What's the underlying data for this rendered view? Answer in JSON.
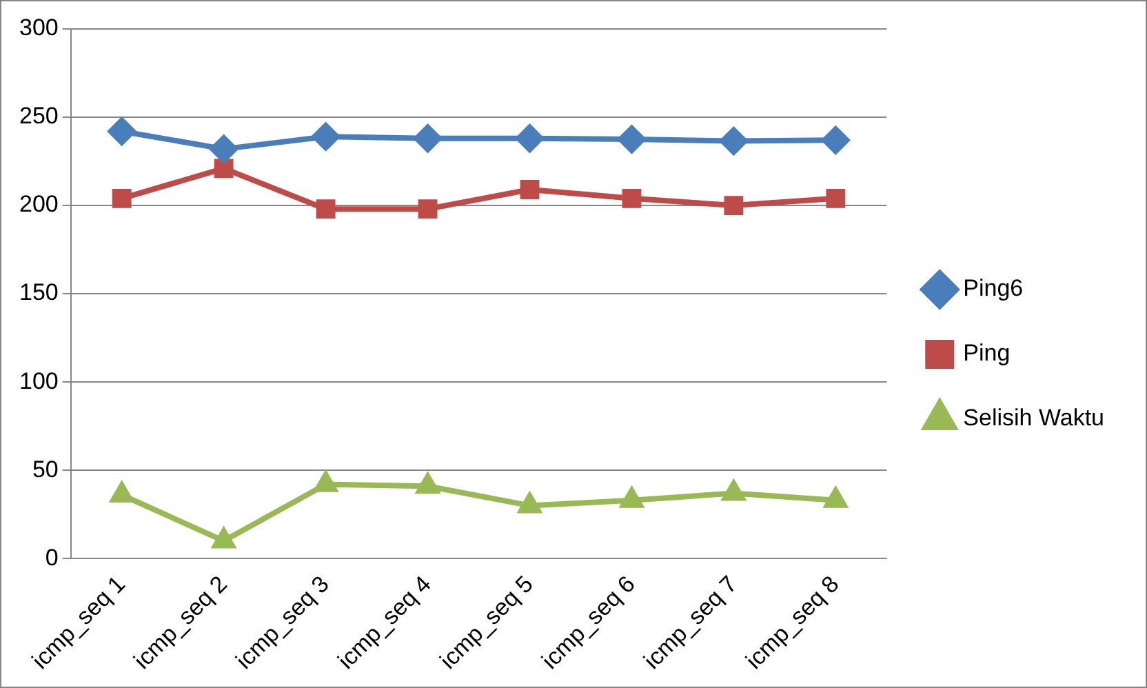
{
  "chart_data": {
    "type": "line",
    "categories": [
      "icmp_seq 1",
      "icmp_seq 2",
      "icmp_seq 3",
      "icmp_seq 4",
      "icmp_seq 5",
      "icmp_seq 6",
      "icmp_seq 7",
      "icmp_seq 8"
    ],
    "series": [
      {
        "name": "Ping6",
        "color": "#4a7ebb",
        "marker": "diamond",
        "values": [
          242,
          232,
          239,
          238,
          238,
          237.5,
          236.5,
          237
        ]
      },
      {
        "name": "Ping",
        "color": "#be4b48",
        "marker": "square",
        "values": [
          204,
          221,
          198,
          198,
          209,
          204,
          200,
          204
        ]
      },
      {
        "name": "Selisih Waktu",
        "color": "#98b954",
        "marker": "triangle",
        "values": [
          36,
          10,
          42,
          41,
          30,
          33,
          37,
          33
        ]
      }
    ],
    "ylim": [
      0,
      300
    ],
    "yticks": [
      0,
      50,
      100,
      150,
      200,
      250,
      300
    ],
    "grid": "y",
    "legend": "right"
  }
}
